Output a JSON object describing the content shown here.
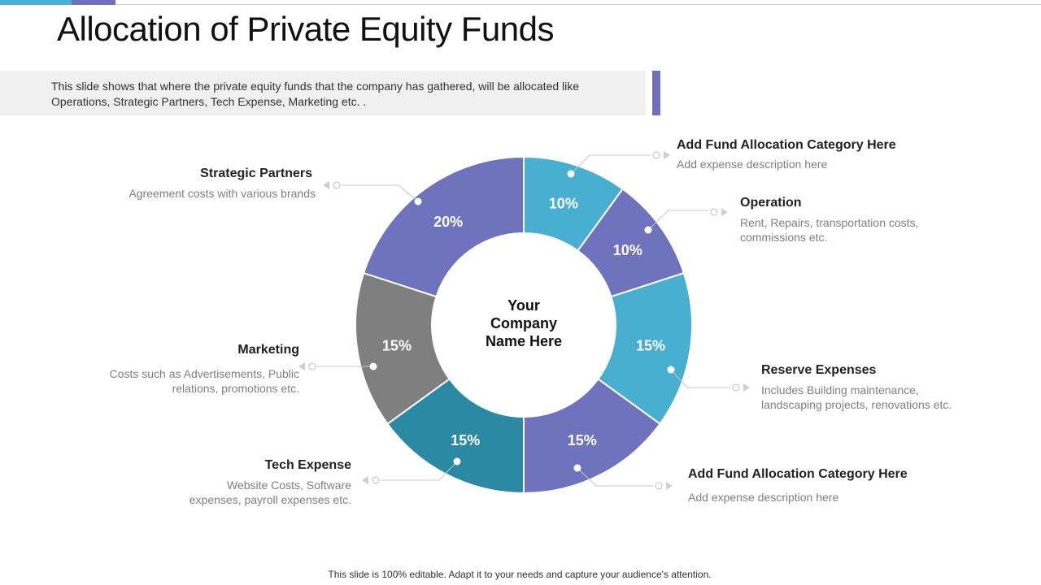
{
  "header": {
    "title": "Allocation of Private Equity Funds",
    "description": "This slide shows that where the private equity funds that the company has gathered, will be allocated like Operations, Strategic Partners, Tech Expense, Marketing etc. ."
  },
  "chart_data": {
    "type": "pie",
    "center_label": "Your Company Name Here",
    "colors": {
      "purple": "#6f72bd",
      "light_blue": "#49afd0",
      "teal": "#2b89a3",
      "gray": "#7f7f7f"
    },
    "slices": [
      {
        "label": "Add Fund Allocation  Category Here",
        "value": 10,
        "value_label": "10%",
        "color": "#49afd0",
        "description": "Add expense description here"
      },
      {
        "label": "Operation",
        "value": 10,
        "value_label": "10%",
        "color": "#6f72bd",
        "description": "Rent, Repairs, transportation costs, commissions etc."
      },
      {
        "label": "Reserve Expenses",
        "value": 15,
        "value_label": "15%",
        "color": "#49afd0",
        "description": "Includes Building maintenance, landscaping projects, renovations etc."
      },
      {
        "label": "Add Fund Allocation  Category Here",
        "value": 15,
        "value_label": "15%",
        "color": "#6f72bd",
        "description": "Add expense description here"
      },
      {
        "label": "Tech Expense",
        "value": 15,
        "value_label": "15%",
        "color": "#2b89a3",
        "description": "Website Costs, Software expenses, payroll expenses etc."
      },
      {
        "label": "Marketing",
        "value": 15,
        "value_label": "15%",
        "color": "#7f7f7f",
        "description": "Costs such as Advertisements, Public relations, promotions etc."
      },
      {
        "label": "Strategic Partners",
        "value": 20,
        "value_label": "20%",
        "color": "#6f72bd",
        "description": "Agreement costs with various brands"
      }
    ]
  },
  "footer": {
    "text": "This slide is 100% editable. Adapt it to your needs and capture your audience's attention."
  }
}
